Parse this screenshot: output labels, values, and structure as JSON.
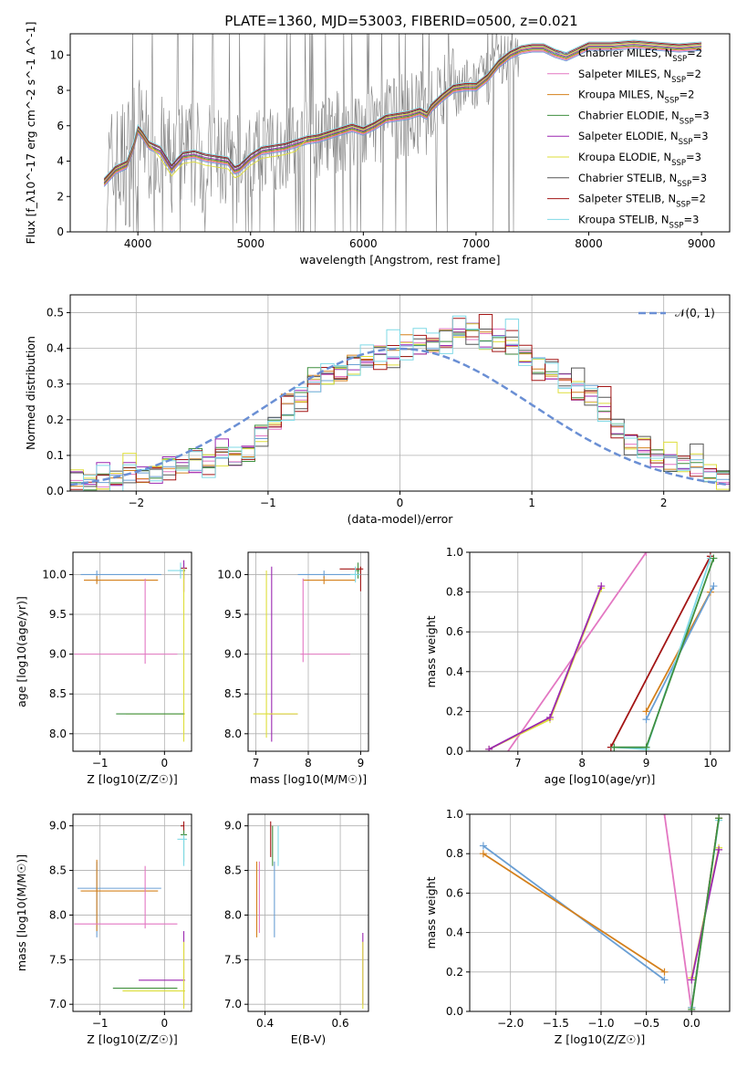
{
  "figure": {
    "title": "PLATE=1360, MJD=53003, FIBERID=0500, z=0.021"
  },
  "models": [
    {
      "name": "Chabrier MILES",
      "nssp": "2",
      "color": "#6a9fd4"
    },
    {
      "name": "Salpeter MILES",
      "nssp": "2",
      "color": "#e377c2"
    },
    {
      "name": "Kroupa MILES",
      "nssp": "2",
      "color": "#d4801c"
    },
    {
      "name": "Chabrier ELODIE",
      "nssp": "3",
      "color": "#3f8f3f"
    },
    {
      "name": "Salpeter ELODIE",
      "nssp": "3",
      "color": "#9b27b0"
    },
    {
      "name": "Kroupa ELODIE",
      "nssp": "3",
      "color": "#dede3a"
    },
    {
      "name": "Chabrier STELIB",
      "nssp": "3",
      "color": "#555555"
    },
    {
      "name": "Salpeter STELIB",
      "nssp": "2",
      "color": "#a31515"
    },
    {
      "name": "Kroupa STELIB",
      "nssp": "3",
      "color": "#7fd9e6"
    }
  ],
  "chart_data": [
    {
      "id": "spectrum",
      "type": "line",
      "xlabel": "wavelength [Angstrom, rest frame]",
      "ylabel": "Flux [f_λ10^-17 erg cm^-2 s^-1 A^-1]",
      "xlim": [
        3400,
        9250
      ],
      "ylim": [
        0,
        11.2
      ],
      "xticks": [
        4000,
        5000,
        6000,
        7000,
        8000,
        9000
      ],
      "yticks": [
        0,
        2,
        4,
        6,
        8,
        10
      ],
      "grid": false,
      "legend": "right",
      "observed_color": "#808080",
      "model_curve": {
        "x": [
          3700,
          3800,
          3900,
          3960,
          4000,
          4050,
          4100,
          4200,
          4300,
          4400,
          4500,
          4600,
          4700,
          4800,
          4860,
          4900,
          5000,
          5100,
          5200,
          5300,
          5400,
          5500,
          5600,
          5700,
          5800,
          5900,
          6000,
          6100,
          6200,
          6300,
          6400,
          6500,
          6563,
          6600,
          6700,
          6800,
          6900,
          7000,
          7100,
          7200,
          7300,
          7400,
          7500,
          7600,
          7700,
          7800,
          7900,
          8000,
          8200,
          8400,
          8600,
          8800,
          9000
        ],
        "y": [
          2.8,
          3.5,
          3.8,
          4.8,
          5.8,
          5.4,
          4.9,
          4.6,
          3.6,
          4.3,
          4.4,
          4.2,
          4.1,
          4.0,
          3.5,
          3.6,
          4.2,
          4.6,
          4.7,
          4.8,
          5.0,
          5.2,
          5.3,
          5.5,
          5.7,
          5.9,
          5.7,
          6.0,
          6.4,
          6.5,
          6.6,
          6.8,
          6.6,
          7.0,
          7.6,
          8.1,
          8.2,
          8.2,
          8.7,
          9.5,
          10.0,
          10.3,
          10.4,
          10.4,
          10.1,
          9.9,
          10.2,
          10.5,
          10.5,
          10.6,
          10.5,
          10.4,
          10.5
        ]
      }
    },
    {
      "id": "residuals",
      "type": "line",
      "xlabel": "(data-model)/error",
      "ylabel": "Normed distribution",
      "xlim": [
        -2.5,
        2.5
      ],
      "ylim": [
        0,
        0.55
      ],
      "xticks": [
        -2,
        -1,
        0,
        1,
        2
      ],
      "yticks": [
        0.0,
        0.1,
        0.2,
        0.3,
        0.4,
        0.5
      ],
      "grid": true,
      "legend": "top-right",
      "reference_label": "𝒩(0, 1)",
      "reference": {
        "type": "gaussian",
        "mean": 0,
        "sigma": 1
      },
      "hist_bin_width": 0.1,
      "hist_base": [
        0.02,
        0.025,
        0.03,
        0.032,
        0.04,
        0.046,
        0.054,
        0.06,
        0.07,
        0.074,
        0.08,
        0.086,
        0.092,
        0.112,
        0.152,
        0.19,
        0.232,
        0.262,
        0.292,
        0.318,
        0.335,
        0.352,
        0.362,
        0.372,
        0.382,
        0.39,
        0.4,
        0.412,
        0.43,
        0.44,
        0.44,
        0.43,
        0.412,
        0.398,
        0.38,
        0.352,
        0.322,
        0.302,
        0.285,
        0.26,
        0.215,
        0.175,
        0.14,
        0.11,
        0.092,
        0.082,
        0.072,
        0.06,
        0.05,
        0.04
      ],
      "hist_jitter": [
        0,
        0.012,
        -0.01,
        0.02,
        -0.016,
        0.008,
        -0.022,
        0.014,
        0.03,
        -0.026,
        0.024,
        0.01,
        -0.018,
        0.018,
        -0.008,
        0.026,
        -0.03,
        0.006,
        0.022,
        -0.014,
        0.016,
        0.004,
        -0.024,
        0.02,
        -0.01,
        0.028,
        0.012,
        -0.02,
        0.034,
        -0.006,
        0.05,
        -0.016,
        0.04,
        0.022,
        -0.032,
        0.036,
        0.01,
        -0.022,
        0.016,
        0.06,
        -0.02,
        0.014,
        0.026,
        -0.01,
        0.012,
        0.02,
        -0.014,
        0.01,
        0.006,
        -0.012
      ]
    },
    {
      "id": "age-vs-Z",
      "type": "scatter",
      "xlabel": "Z [log10(Z/Z☉)]",
      "ylabel": "age [log10(age/yr)]",
      "xlim": [
        -1.42,
        0.42
      ],
      "ylim": [
        7.78,
        10.28
      ],
      "xticks": [
        -1,
        0
      ],
      "yticks": [
        8.0,
        8.5,
        9.0,
        9.5,
        10.0
      ],
      "grid": true,
      "errorbars": [
        {
          "model": 0,
          "x": -1.05,
          "xerr": [
            0.25,
            1.0
          ],
          "y": 10.0,
          "yerr": [
            0.1,
            0.05
          ]
        },
        {
          "model": 2,
          "x": -1.05,
          "xerr": [
            0.2,
            0.95
          ],
          "y": 9.93,
          "yerr": [
            0.05,
            0.05
          ]
        },
        {
          "model": 1,
          "x": -0.3,
          "xerr": [
            1.1,
            0.5
          ],
          "y": 9.0,
          "yerr": [
            0.12,
            0.95
          ]
        },
        {
          "model": 3,
          "x": 0.3,
          "xerr": [
            0.05,
            0.02
          ],
          "y": 10.05,
          "yerr": [
            0.1,
            0.1
          ]
        },
        {
          "model": 7,
          "x": 0.3,
          "xerr": [
            0.05,
            0.05
          ],
          "y": 10.08,
          "yerr": [
            0.3,
            0.0
          ]
        },
        {
          "model": 8,
          "x": 0.25,
          "xerr": [
            0.2,
            0.05
          ],
          "y": 10.05,
          "yerr": [
            0.1,
            0.1
          ]
        },
        {
          "model": 4,
          "x": 0.3,
          "xerr": [
            0.02,
            0.02
          ],
          "y": 10.08,
          "yerr": [
            0.3,
            0.1
          ]
        },
        {
          "model": 5,
          "x": 0.3,
          "xerr": [
            0.9,
            0.02
          ],
          "y": 8.25,
          "yerr": [
            0.35,
            1.83
          ]
        },
        {
          "model": 3,
          "x": -0.65,
          "xerr": [
            0.1,
            0.95
          ],
          "y": 8.25,
          "yerr": [
            0,
            0
          ]
        }
      ]
    },
    {
      "id": "age-vs-mass",
      "type": "scatter",
      "xlabel": "mass [log10(M/M☉)]",
      "ylabel": "",
      "xlim": [
        6.85,
        9.15
      ],
      "ylim": [
        7.78,
        10.28
      ],
      "xticks": [
        7,
        8,
        9
      ],
      "yticks": [
        8.0,
        8.5,
        9.0,
        9.5,
        10.0
      ],
      "grid": true,
      "errorbars": [
        {
          "model": 0,
          "x": 8.3,
          "xerr": [
            0.5,
            0.7
          ],
          "y": 10.0,
          "yerr": [
            0.05,
            0.05
          ]
        },
        {
          "model": 2,
          "x": 8.3,
          "xerr": [
            0.4,
            0.6
          ],
          "y": 9.93,
          "yerr": [
            0.05,
            0.05
          ]
        },
        {
          "model": 1,
          "x": 7.9,
          "xerr": [
            0.05,
            0.9
          ],
          "y": 9.0,
          "yerr": [
            0.1,
            0.95
          ]
        },
        {
          "model": 3,
          "x": 8.95,
          "xerr": [
            0.05,
            0.03
          ],
          "y": 10.05,
          "yerr": [
            0.1,
            0.1
          ]
        },
        {
          "model": 7,
          "x": 9.0,
          "xerr": [
            0.4,
            0.05
          ],
          "y": 10.07,
          "yerr": [
            0.28,
            0.03
          ]
        },
        {
          "model": 4,
          "x": 7.3,
          "xerr": [
            0.05,
            0.5
          ],
          "y": 8.25,
          "yerr": [
            0.35,
            1.85
          ]
        },
        {
          "model": 5,
          "x": 7.2,
          "xerr": [
            0.25,
            0.6
          ],
          "y": 8.25,
          "yerr": [
            0.3,
            1.8
          ]
        },
        {
          "model": 8,
          "x": 8.9,
          "xerr": [
            0.1,
            0.1
          ],
          "y": 10.0,
          "yerr": [
            0.1,
            0.1
          ]
        }
      ]
    },
    {
      "id": "massweight-vs-age",
      "type": "line",
      "xlabel": "age [log10(age/yr)]",
      "ylabel": "mass weight",
      "xlim": [
        6.25,
        10.3
      ],
      "ylim": [
        0,
        1
      ],
      "xticks": [
        7,
        8,
        9,
        10
      ],
      "yticks": [
        0.0,
        0.2,
        0.4,
        0.6,
        0.8,
        1.0
      ],
      "grid": true,
      "series": [
        {
          "model": 1,
          "x": [
            6.2,
            9.0
          ],
          "y": [
            -0.3,
            1.0
          ]
        },
        {
          "model": 5,
          "x": [
            6.55,
            7.5,
            8.3
          ],
          "y": [
            0.01,
            0.16,
            0.82
          ]
        },
        {
          "model": 4,
          "x": [
            6.55,
            7.5,
            8.3
          ],
          "y": [
            0.01,
            0.17,
            0.83
          ]
        },
        {
          "model": 7,
          "x": [
            8.45,
            10.0
          ],
          "y": [
            0.02,
            0.98
          ]
        },
        {
          "model": 2,
          "x": [
            9.0,
            10.0
          ],
          "y": [
            0.2,
            0.8
          ]
        },
        {
          "model": 0,
          "x": [
            9.0,
            10.05
          ],
          "y": [
            0.16,
            0.83
          ]
        },
        {
          "model": 8,
          "x": [
            8.5,
            9.0,
            10.0
          ],
          "y": [
            0.02,
            0.01,
            0.97
          ]
        },
        {
          "model": 3,
          "x": [
            8.5,
            9.0,
            10.05
          ],
          "y": [
            0.02,
            0.02,
            0.97
          ]
        }
      ]
    },
    {
      "id": "mass-vs-Z",
      "type": "scatter",
      "xlabel": "Z [log10(Z/Z☉)]",
      "ylabel": "mass [log10(M/M☉)]",
      "xlim": [
        -1.42,
        0.42
      ],
      "ylim": [
        6.92,
        9.13
      ],
      "xticks": [
        -1,
        0
      ],
      "yticks": [
        7.0,
        7.5,
        8.0,
        8.5,
        9.0
      ],
      "grid": true,
      "errorbars": [
        {
          "model": 0,
          "x": -1.05,
          "xerr": [
            0.3,
            1.0
          ],
          "y": 8.3,
          "yerr": [
            0.55,
            0.3
          ]
        },
        {
          "model": 2,
          "x": -1.05,
          "xerr": [
            0.25,
            0.95
          ],
          "y": 8.27,
          "yerr": [
            0.45,
            0.35
          ]
        },
        {
          "model": 1,
          "x": -0.3,
          "xerr": [
            1.1,
            0.5
          ],
          "y": 7.9,
          "yerr": [
            0.05,
            0.65
          ]
        },
        {
          "model": 7,
          "x": 0.3,
          "xerr": [
            0.05,
            0.0
          ],
          "y": 9.0,
          "yerr": [
            0.1,
            0.05
          ]
        },
        {
          "model": 3,
          "x": 0.3,
          "xerr": [
            0.05,
            0.05
          ],
          "y": 8.9,
          "yerr": [
            0.3,
            0.05
          ]
        },
        {
          "model": 8,
          "x": 0.3,
          "xerr": [
            0.1,
            0.05
          ],
          "y": 8.85,
          "yerr": [
            0.3,
            0.05
          ]
        },
        {
          "model": 4,
          "x": 0.3,
          "xerr": [
            0.7,
            0.02
          ],
          "y": 7.27,
          "yerr": [
            0.3,
            0.55
          ]
        },
        {
          "model": 5,
          "x": 0.3,
          "xerr": [
            0.95,
            0.02
          ],
          "y": 7.15,
          "yerr": [
            0.2,
            0.55
          ]
        },
        {
          "model": 3,
          "x": -0.3,
          "xerr": [
            0.5,
            0.5
          ],
          "y": 7.18,
          "yerr": [
            0,
            0
          ]
        }
      ]
    },
    {
      "id": "mass-vs-EBV",
      "type": "scatter",
      "xlabel": "E(B-V)",
      "ylabel": "",
      "xlim": [
        0.355,
        0.675
      ],
      "ylim": [
        6.92,
        9.13
      ],
      "xticks": [
        0.4,
        0.6
      ],
      "yticks": [
        7.0,
        7.5,
        8.0,
        8.5,
        9.0
      ],
      "grid": true,
      "errorbars": [
        {
          "model": 2,
          "x": 0.378,
          "y": 8.2,
          "yerr": [
            0.45,
            0.4
          ]
        },
        {
          "model": 1,
          "x": 0.385,
          "y": 8.05,
          "yerr": [
            0.25,
            0.55
          ]
        },
        {
          "model": 0,
          "x": 0.425,
          "y": 8.3,
          "yerr": [
            0.55,
            0.3
          ]
        },
        {
          "model": 7,
          "x": 0.415,
          "y": 8.9,
          "yerr": [
            0.25,
            0.15
          ]
        },
        {
          "model": 3,
          "x": 0.42,
          "y": 8.85,
          "yerr": [
            0.3,
            0.15
          ]
        },
        {
          "model": 8,
          "x": 0.435,
          "y": 8.8,
          "yerr": [
            0.25,
            0.2
          ]
        },
        {
          "model": 4,
          "x": 0.66,
          "y": 7.3,
          "yerr": [
            0.3,
            0.5
          ]
        },
        {
          "model": 5,
          "x": 0.66,
          "y": 7.2,
          "yerr": [
            0.25,
            0.5
          ]
        }
      ]
    },
    {
      "id": "massweight-vs-Z",
      "type": "line",
      "xlabel": "Z [log10(Z/Z☉)]",
      "ylabel": "mass weight",
      "xlim": [
        -2.45,
        0.42
      ],
      "ylim": [
        0,
        1
      ],
      "xticks": [
        -2.0,
        -1.5,
        -1.0,
        -0.5,
        0.0
      ],
      "yticks": [
        0.0,
        0.2,
        0.4,
        0.6,
        0.8,
        1.0
      ],
      "grid": true,
      "series": [
        {
          "model": 0,
          "x": [
            -2.3,
            -0.3
          ],
          "y": [
            0.84,
            0.16
          ]
        },
        {
          "model": 2,
          "x": [
            -2.3,
            -0.3
          ],
          "y": [
            0.8,
            0.2
          ]
        },
        {
          "model": 1,
          "x": [
            -0.3,
            0.0
          ],
          "y": [
            1.0,
            0.0
          ]
        },
        {
          "model": 5,
          "x": [
            0.0,
            0.3
          ],
          "y": [
            0.17,
            0.83
          ]
        },
        {
          "model": 4,
          "x": [
            0.0,
            0.3
          ],
          "y": [
            0.16,
            0.82
          ]
        },
        {
          "model": 7,
          "x": [
            0.0,
            0.3
          ],
          "y": [
            0.02,
            0.98
          ]
        },
        {
          "model": 8,
          "x": [
            0.0,
            0.3
          ],
          "y": [
            0.02,
            0.97
          ]
        },
        {
          "model": 3,
          "x": [
            0.0,
            0.3
          ],
          "y": [
            0.01,
            0.98
          ]
        }
      ]
    }
  ]
}
